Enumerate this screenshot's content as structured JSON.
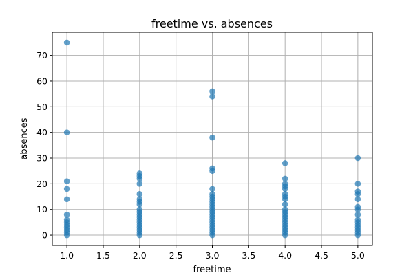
{
  "chart_data": {
    "type": "scatter",
    "title": "freetime vs. absences",
    "xlabel": "freetime",
    "ylabel": "absences",
    "xlim": [
      0.8,
      5.2
    ],
    "ylim": [
      -4,
      79
    ],
    "xticks": [
      1.0,
      1.5,
      2.0,
      2.5,
      3.0,
      3.5,
      4.0,
      4.5,
      5.0
    ],
    "xtick_labels": [
      "1.0",
      "1.5",
      "2.0",
      "2.5",
      "3.0",
      "3.5",
      "4.0",
      "4.5",
      "5.0"
    ],
    "yticks": [
      0,
      10,
      20,
      30,
      40,
      50,
      60,
      70
    ],
    "ytick_labels": [
      "0",
      "10",
      "20",
      "30",
      "40",
      "50",
      "60",
      "70"
    ],
    "grid": true,
    "marker_color": "#1f77b4",
    "points": [
      {
        "x": 1,
        "y": 75
      },
      {
        "x": 1,
        "y": 40
      },
      {
        "x": 1,
        "y": 21
      },
      {
        "x": 1,
        "y": 18
      },
      {
        "x": 1,
        "y": 14
      },
      {
        "x": 1,
        "y": 8
      },
      {
        "x": 1,
        "y": 6
      },
      {
        "x": 1,
        "y": 5
      },
      {
        "x": 1,
        "y": 4
      },
      {
        "x": 1,
        "y": 3
      },
      {
        "x": 1,
        "y": 2
      },
      {
        "x": 1,
        "y": 1
      },
      {
        "x": 1,
        "y": 0
      },
      {
        "x": 2,
        "y": 24
      },
      {
        "x": 2,
        "y": 23
      },
      {
        "x": 2,
        "y": 22
      },
      {
        "x": 2,
        "y": 20
      },
      {
        "x": 2,
        "y": 16
      },
      {
        "x": 2,
        "y": 14
      },
      {
        "x": 2,
        "y": 13
      },
      {
        "x": 2,
        "y": 12
      },
      {
        "x": 2,
        "y": 10
      },
      {
        "x": 2,
        "y": 9
      },
      {
        "x": 2,
        "y": 8
      },
      {
        "x": 2,
        "y": 7
      },
      {
        "x": 2,
        "y": 6
      },
      {
        "x": 2,
        "y": 5
      },
      {
        "x": 2,
        "y": 4
      },
      {
        "x": 2,
        "y": 3
      },
      {
        "x": 2,
        "y": 2
      },
      {
        "x": 2,
        "y": 1
      },
      {
        "x": 2,
        "y": 0
      },
      {
        "x": 3,
        "y": 56
      },
      {
        "x": 3,
        "y": 54
      },
      {
        "x": 3,
        "y": 38
      },
      {
        "x": 3,
        "y": 26
      },
      {
        "x": 3,
        "y": 25
      },
      {
        "x": 3,
        "y": 18
      },
      {
        "x": 3,
        "y": 16
      },
      {
        "x": 3,
        "y": 15
      },
      {
        "x": 3,
        "y": 14
      },
      {
        "x": 3,
        "y": 13
      },
      {
        "x": 3,
        "y": 12
      },
      {
        "x": 3,
        "y": 11
      },
      {
        "x": 3,
        "y": 10
      },
      {
        "x": 3,
        "y": 9
      },
      {
        "x": 3,
        "y": 8
      },
      {
        "x": 3,
        "y": 7
      },
      {
        "x": 3,
        "y": 6
      },
      {
        "x": 3,
        "y": 5
      },
      {
        "x": 3,
        "y": 4
      },
      {
        "x": 3,
        "y": 3
      },
      {
        "x": 3,
        "y": 2
      },
      {
        "x": 3,
        "y": 1
      },
      {
        "x": 3,
        "y": 0
      },
      {
        "x": 4,
        "y": 28
      },
      {
        "x": 4,
        "y": 22
      },
      {
        "x": 4,
        "y": 20
      },
      {
        "x": 4,
        "y": 19
      },
      {
        "x": 4,
        "y": 18
      },
      {
        "x": 4,
        "y": 16
      },
      {
        "x": 4,
        "y": 15
      },
      {
        "x": 4,
        "y": 14
      },
      {
        "x": 4,
        "y": 12
      },
      {
        "x": 4,
        "y": 10
      },
      {
        "x": 4,
        "y": 9
      },
      {
        "x": 4,
        "y": 8
      },
      {
        "x": 4,
        "y": 7
      },
      {
        "x": 4,
        "y": 6
      },
      {
        "x": 4,
        "y": 5
      },
      {
        "x": 4,
        "y": 4
      },
      {
        "x": 4,
        "y": 3
      },
      {
        "x": 4,
        "y": 2
      },
      {
        "x": 4,
        "y": 1
      },
      {
        "x": 4,
        "y": 0
      },
      {
        "x": 5,
        "y": 30
      },
      {
        "x": 5,
        "y": 20
      },
      {
        "x": 5,
        "y": 17
      },
      {
        "x": 5,
        "y": 16
      },
      {
        "x": 5,
        "y": 14
      },
      {
        "x": 5,
        "y": 11
      },
      {
        "x": 5,
        "y": 10
      },
      {
        "x": 5,
        "y": 8
      },
      {
        "x": 5,
        "y": 6
      },
      {
        "x": 5,
        "y": 5
      },
      {
        "x": 5,
        "y": 4
      },
      {
        "x": 5,
        "y": 3
      },
      {
        "x": 5,
        "y": 2
      },
      {
        "x": 5,
        "y": 1
      },
      {
        "x": 5,
        "y": 0
      }
    ]
  }
}
